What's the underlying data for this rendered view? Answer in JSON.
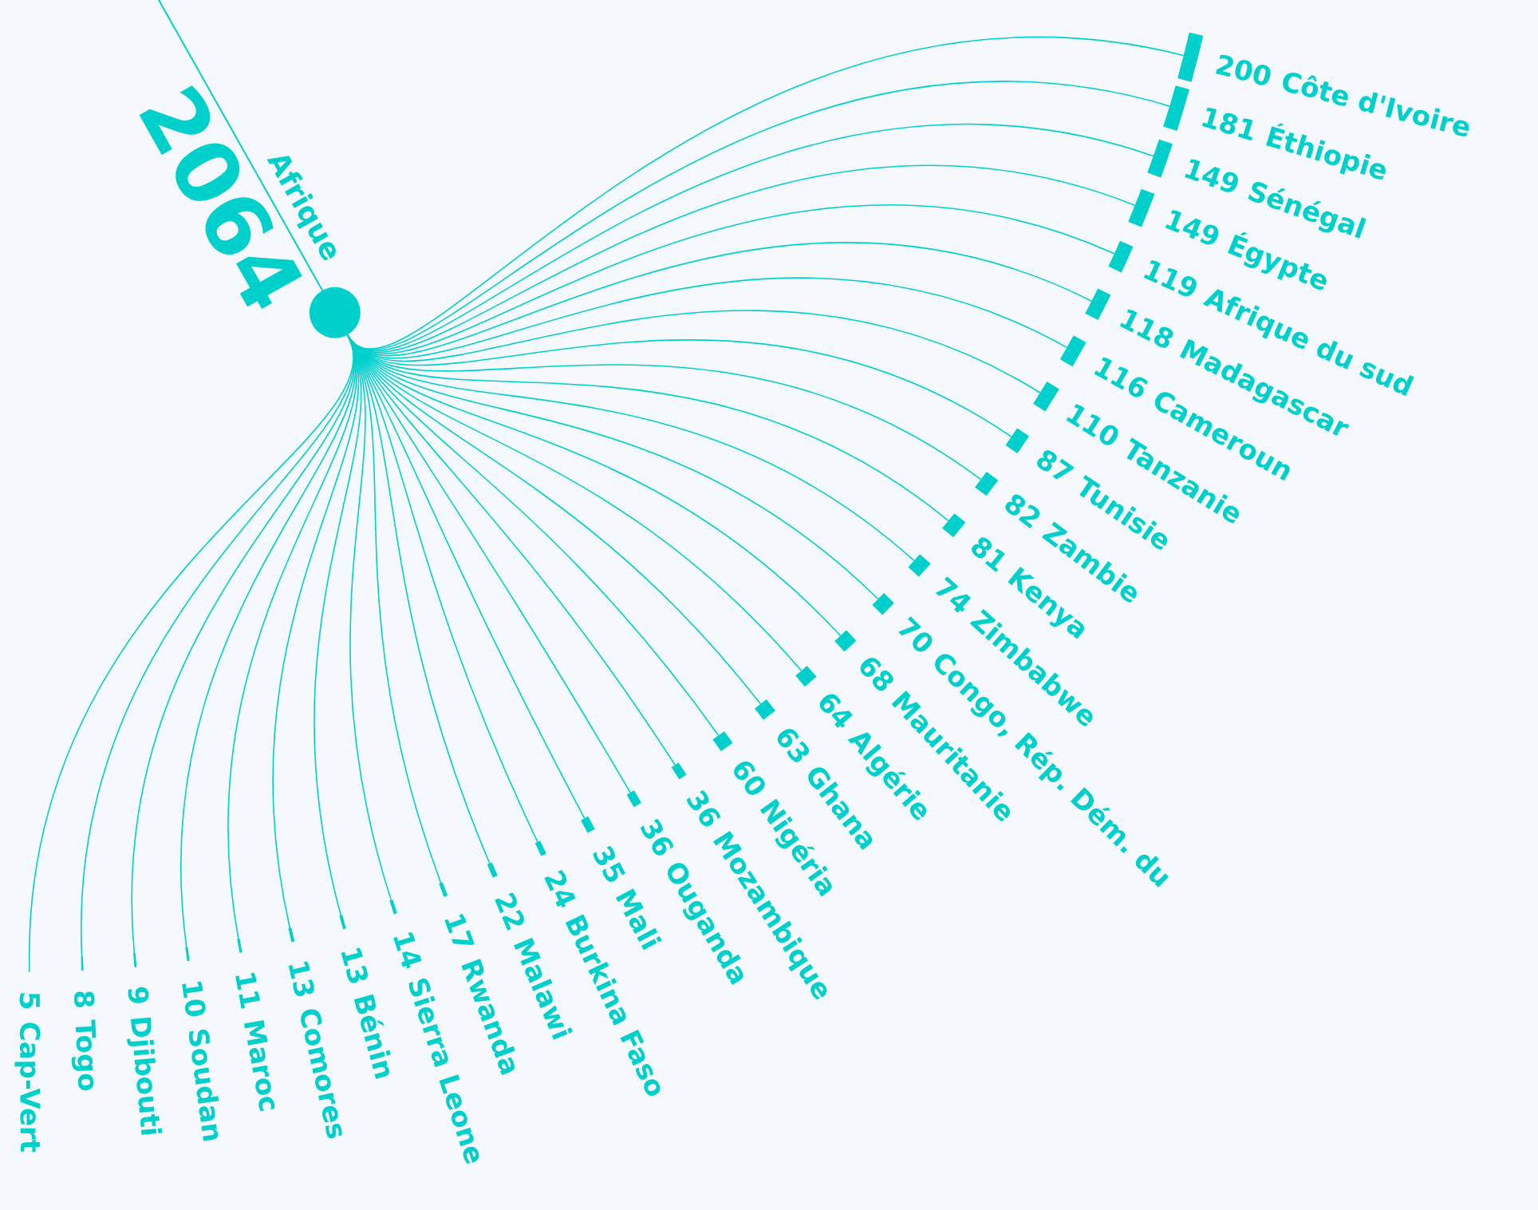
{
  "chart_data": {
    "type": "other",
    "data_labels": true,
    "title": "2064",
    "subtitle": "Afrique",
    "color": "#00d0cc",
    "categories": [
      "Côte d'Ivoire",
      "Éthiopie",
      "Sénégal",
      "Égypte",
      "Afrique du sud",
      "Madagascar",
      "Cameroun",
      "Tanzanie",
      "Tunisie",
      "Zambie",
      "Kenya",
      "Zimbabwe",
      "Congo, Rép. Dém. du",
      "Mauritanie",
      "Algérie",
      "Ghana",
      "Nigéria",
      "Mozambique",
      "Ouganda",
      "Mali",
      "Burkina Faso",
      "Malawi",
      "Rwanda",
      "Sierra Leone",
      "Bénin",
      "Comores",
      "Maroc",
      "Soudan",
      "Djibouti",
      "Togo",
      "Cap-Vert"
    ],
    "values": [
      200,
      181,
      149,
      149,
      119,
      118,
      116,
      110,
      87,
      82,
      81,
      74,
      70,
      68,
      64,
      63,
      60,
      36,
      36,
      35,
      24,
      22,
      17,
      14,
      13,
      13,
      11,
      10,
      9,
      8,
      5
    ]
  }
}
